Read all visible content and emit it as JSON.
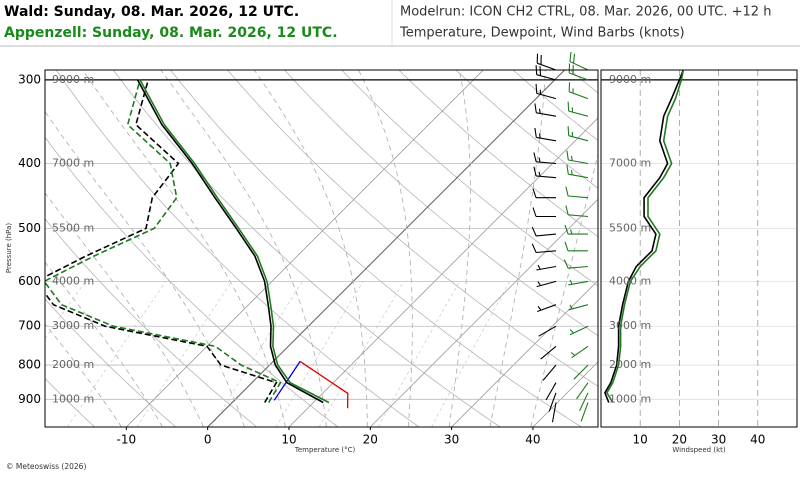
{
  "header": {
    "left_title": "Wald: Sunday, 08. Mar. 2026, 12 UTC.",
    "left_subtitle": "Appenzell: Sunday, 08. Mar. 2026, 12 UTC.",
    "right_title": "Modelrun: ICON CH2 CTRL, 08. Mar. 2026, 00 UTC. +12 h",
    "right_subtitle": "Temperature, Dewpoint, Wind Barbs (knots)"
  },
  "footer": "© Meteoswiss (2026)",
  "chart_data": [
    {
      "type": "skewt",
      "ylabel": "Pressure (hPa)",
      "xlabel": "Temperature (°C)",
      "xlim": [
        -20,
        48
      ],
      "ylim": [
        990,
        290
      ],
      "log_y": true,
      "xticks": [
        -10,
        0,
        10,
        20,
        30,
        40
      ],
      "yticks": [
        300,
        400,
        500,
        600,
        700,
        800,
        900
      ],
      "height_labels": [
        "9000 m",
        "7000 m",
        "5500 m",
        "4000 m",
        "3000 m",
        "2000 m",
        "1000 m"
      ],
      "pressure": [
        910,
        850,
        800,
        750,
        700,
        650,
        600,
        550,
        500,
        450,
        400,
        350,
        300
      ],
      "series": [
        {
          "color": "#000000",
          "style": "solid",
          "values": [
            11.2,
            4.3,
            0.7,
            -2.2,
            -4.6,
            -7.6,
            -10.9,
            -15.2,
            -20.9,
            -27.3,
            -34.3,
            -42.8,
            -51.3
          ]
        },
        {
          "color": "#000000",
          "style": "dashed",
          "values": [
            4.0,
            3.0,
            -6.0,
            -10.0,
            -25.0,
            -34.0,
            -39.0,
            -36.0,
            -32.0,
            -35.0,
            -36.0,
            -46.0,
            -50.0
          ]
        },
        {
          "color": "#1f7a1f",
          "style": "solid",
          "values": [
            11.9,
            4.7,
            1.0,
            -1.9,
            -4.3,
            -7.3,
            -10.6,
            -14.9,
            -20.6,
            -27.0,
            -34.0,
            -42.5,
            -51.0
          ]
        },
        {
          "color": "#1f7a1f",
          "style": "dashed",
          "values": [
            4.5,
            3.5,
            -3.5,
            -9.0,
            -24.0,
            -33.0,
            -38.0,
            -35.0,
            -31.0,
            -32.0,
            -37.0,
            -47.0,
            -51.0
          ]
        }
      ],
      "parcel": [
        {
          "color": "#e00000",
          "pressure": [
            928,
            882,
            790
          ],
          "values": [
            14.9,
            13.1,
            3.3
          ]
        },
        {
          "color": "#0000e0",
          "pressure": [
            903,
            790
          ],
          "values": [
            4.9,
            3.3
          ]
        }
      ]
    },
    {
      "type": "line",
      "xlabel": "Windspeed (kt)",
      "xlim": [
        0,
        50
      ],
      "ylim": [
        990,
        290
      ],
      "xticks": [
        10,
        20,
        30,
        40
      ],
      "pressure": [
        910,
        880,
        850,
        800,
        750,
        700,
        650,
        600,
        570,
        540,
        510,
        480,
        450,
        420,
        400,
        370,
        340,
        320,
        300,
        290
      ],
      "series": [
        {
          "color": "#000000",
          "values": [
            2,
            1,
            2.5,
            4,
            4.5,
            4.5,
            5.5,
            7,
            9,
            13,
            14,
            11,
            11,
            15,
            17,
            15,
            16,
            18,
            20,
            21
          ],
          "direction": [
            190,
            200,
            210,
            220,
            230,
            240,
            250,
            255,
            260,
            265,
            265,
            270,
            270,
            275,
            275,
            280,
            280,
            285,
            285,
            290
          ]
        },
        {
          "color": "#1f7a1f",
          "values": [
            3,
            1.5,
            3,
            4.5,
            5,
            5,
            6,
            7.5,
            10,
            14,
            15,
            12,
            12,
            16,
            18,
            16,
            17,
            19,
            20.5,
            21
          ],
          "direction": [
            200,
            205,
            215,
            225,
            235,
            245,
            255,
            260,
            265,
            270,
            270,
            275,
            275,
            280,
            280,
            285,
            285,
            290,
            290,
            295
          ]
        }
      ]
    }
  ]
}
